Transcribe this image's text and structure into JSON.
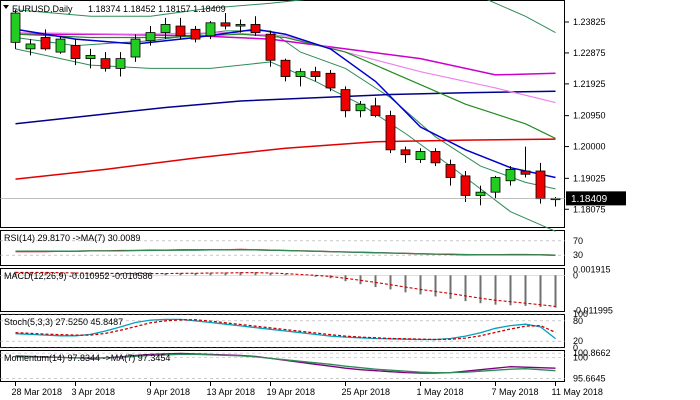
{
  "chart_data": [
    {
      "type": "candlestick",
      "title": "EURUSD,Daily",
      "ohlc_header": "1.18374 1.18452 1.18157 1.18409",
      "last_price_label": "1.18409",
      "ylim": [
        1.175,
        1.245
      ],
      "y_ticks": [
        "1.23825",
        "1.22875",
        "1.21925",
        "1.20950",
        "1.20000",
        "1.19025",
        "1.18075"
      ],
      "y_tick_values": [
        1.23825,
        1.22875,
        1.21925,
        1.2095,
        1.2,
        1.19025,
        1.18075
      ],
      "x_labels": [
        "28 Mar 2018",
        "3 Apr 2018",
        "9 Apr 2018",
        "13 Apr 2018",
        "19 Apr 2018",
        "25 Apr 2018",
        "1 May 2018",
        "7 May 2018",
        "11 May 2018"
      ],
      "x_label_index": [
        0,
        4,
        9,
        13,
        17,
        22,
        27,
        32,
        36
      ],
      "candles": [
        {
          "o": 1.232,
          "h": 1.242,
          "l": 1.23,
          "c": 1.241
        },
        {
          "o": 1.23,
          "h": 1.233,
          "l": 1.228,
          "c": 1.2315
        },
        {
          "o": 1.2335,
          "h": 1.236,
          "l": 1.2295,
          "c": 1.23
        },
        {
          "o": 1.229,
          "h": 1.234,
          "l": 1.2285,
          "c": 1.233
        },
        {
          "o": 1.231,
          "h": 1.233,
          "l": 1.225,
          "c": 1.227
        },
        {
          "o": 1.227,
          "h": 1.23,
          "l": 1.224,
          "c": 1.228
        },
        {
          "o": 1.227,
          "h": 1.229,
          "l": 1.223,
          "c": 1.224
        },
        {
          "o": 1.224,
          "h": 1.229,
          "l": 1.2215,
          "c": 1.227
        },
        {
          "o": 1.2275,
          "h": 1.2345,
          "l": 1.226,
          "c": 1.233
        },
        {
          "o": 1.2325,
          "h": 1.237,
          "l": 1.231,
          "c": 1.235
        },
        {
          "o": 1.235,
          "h": 1.2395,
          "l": 1.233,
          "c": 1.2375
        },
        {
          "o": 1.237,
          "h": 1.2395,
          "l": 1.233,
          "c": 1.234
        },
        {
          "o": 1.236,
          "h": 1.237,
          "l": 1.232,
          "c": 1.233
        },
        {
          "o": 1.234,
          "h": 1.2385,
          "l": 1.233,
          "c": 1.238
        },
        {
          "o": 1.238,
          "h": 1.241,
          "l": 1.236,
          "c": 1.237
        },
        {
          "o": 1.237,
          "h": 1.239,
          "l": 1.235,
          "c": 1.2375
        },
        {
          "o": 1.2375,
          "h": 1.24,
          "l": 1.234,
          "c": 1.235
        },
        {
          "o": 1.2345,
          "h": 1.2355,
          "l": 1.2245,
          "c": 1.2265
        },
        {
          "o": 1.2265,
          "h": 1.227,
          "l": 1.22,
          "c": 1.2215
        },
        {
          "o": 1.2215,
          "h": 1.224,
          "l": 1.2185,
          "c": 1.223
        },
        {
          "o": 1.223,
          "h": 1.2245,
          "l": 1.22,
          "c": 1.2215
        },
        {
          "o": 1.2225,
          "h": 1.2235,
          "l": 1.217,
          "c": 1.218
        },
        {
          "o": 1.2175,
          "h": 1.2185,
          "l": 1.209,
          "c": 1.211
        },
        {
          "o": 1.211,
          "h": 1.214,
          "l": 1.209,
          "c": 1.213
        },
        {
          "o": 1.2125,
          "h": 1.215,
          "l": 1.209,
          "c": 1.2095
        },
        {
          "o": 1.2095,
          "h": 1.211,
          "l": 1.198,
          "c": 1.199
        },
        {
          "o": 1.199,
          "h": 1.2,
          "l": 1.195,
          "c": 1.1975
        },
        {
          "o": 1.196,
          "h": 1.1995,
          "l": 1.195,
          "c": 1.1985
        },
        {
          "o": 1.1985,
          "h": 1.1995,
          "l": 1.194,
          "c": 1.195
        },
        {
          "o": 1.1945,
          "h": 1.196,
          "l": 1.188,
          "c": 1.1905
        },
        {
          "o": 1.191,
          "h": 1.1925,
          "l": 1.183,
          "c": 1.185
        },
        {
          "o": 1.185,
          "h": 1.188,
          "l": 1.182,
          "c": 1.186
        },
        {
          "o": 1.186,
          "h": 1.191,
          "l": 1.184,
          "c": 1.1905
        },
        {
          "o": 1.1895,
          "h": 1.194,
          "l": 1.188,
          "c": 1.193
        },
        {
          "o": 1.1925,
          "h": 1.2,
          "l": 1.1905,
          "c": 1.1915
        },
        {
          "o": 1.1925,
          "h": 1.195,
          "l": 1.1825,
          "c": 1.184
        },
        {
          "o": 1.1837,
          "h": 1.1845,
          "l": 1.1816,
          "c": 1.1841
        }
      ],
      "overlays": [
        {
          "color": "#00008b",
          "width": 1.5,
          "points": [
            [
              0,
              1.207
            ],
            [
              5,
              1.2095
            ],
            [
              10,
              1.212
            ],
            [
              15,
              1.214
            ],
            [
              20,
              1.215
            ],
            [
              25,
              1.216
            ],
            [
              30,
              1.2165
            ],
            [
              36,
              1.217
            ]
          ]
        },
        {
          "color": "#e00000",
          "width": 1.5,
          "points": [
            [
              0,
              1.19
            ],
            [
              6,
              1.193
            ],
            [
              12,
              1.1965
            ],
            [
              18,
              1.1995
            ],
            [
              24,
              1.2015
            ],
            [
              30,
              1.202
            ],
            [
              36,
              1.2023
            ]
          ]
        },
        {
          "color": "#cc00cc",
          "width": 1.5,
          "points": [
            [
              0,
              1.2345
            ],
            [
              6,
              1.2345
            ],
            [
              12,
              1.234
            ],
            [
              17,
              1.233
            ],
            [
              22,
              1.23
            ],
            [
              27,
              1.227
            ],
            [
              32,
              1.222
            ],
            [
              36,
              1.2225
            ]
          ]
        },
        {
          "color": "#ee82ee",
          "width": 1.2,
          "points": [
            [
              0,
              1.235
            ],
            [
              8,
              1.2345
            ],
            [
              14,
              1.235
            ],
            [
              18,
              1.234
            ],
            [
              22,
              1.229
            ],
            [
              27,
              1.223
            ],
            [
              32,
              1.218
            ],
            [
              36,
              1.2135
            ]
          ]
        },
        {
          "color": "#228b22",
          "width": 1.2,
          "points": [
            [
              0,
              1.2345
            ],
            [
              5,
              1.2335
            ],
            [
              10,
              1.2335
            ],
            [
              15,
              1.2345
            ],
            [
              18,
              1.2335
            ],
            [
              22,
              1.229
            ],
            [
              26,
              1.221
            ],
            [
              30,
              1.213
            ],
            [
              34,
              1.207
            ],
            [
              36,
              1.2025
            ]
          ]
        },
        {
          "color": "#0000cd",
          "width": 1.5,
          "points": [
            [
              0,
              1.236
            ],
            [
              4,
              1.233
            ],
            [
              8,
              1.2315
            ],
            [
              12,
              1.2335
            ],
            [
              16,
              1.236
            ],
            [
              18,
              1.2345
            ],
            [
              21,
              1.23
            ],
            [
              24,
              1.22
            ],
            [
              27,
              1.206
            ],
            [
              30,
              1.199
            ],
            [
              33,
              1.1935
            ],
            [
              36,
              1.1905
            ]
          ]
        },
        {
          "color": "#2e8b57",
          "width": 1.0,
          "points": [
            [
              0,
              1.2335
            ],
            [
              4,
              1.231
            ],
            [
              9,
              1.2325
            ],
            [
              14,
              1.2355
            ],
            [
              17,
              1.2355
            ],
            [
              19,
              1.229
            ],
            [
              22,
              1.224
            ],
            [
              25,
              1.215
            ],
            [
              28,
              1.203
            ],
            [
              31,
              1.194
            ],
            [
              34,
              1.189
            ],
            [
              36,
              1.187
            ]
          ]
        },
        {
          "color": "#2e8b57",
          "width": 1.0,
          "points": [
            [
              0,
              1.242
            ],
            [
              5,
              1.24
            ],
            [
              9,
              1.24
            ],
            [
              13,
              1.2425
            ],
            [
              17,
              1.244
            ],
            [
              21,
              1.246
            ],
            [
              26,
              1.248
            ],
            [
              31,
              1.246
            ],
            [
              34,
              1.24
            ],
            [
              36,
              1.235
            ]
          ]
        },
        {
          "color": "#2e8b57",
          "width": 1.0,
          "points": [
            [
              0,
              1.23
            ],
            [
              5,
              1.225
            ],
            [
              9,
              1.224
            ],
            [
              13,
              1.224
            ],
            [
              17,
              1.226
            ],
            [
              20,
              1.22
            ],
            [
              23,
              1.213
            ],
            [
              26,
              1.204
            ],
            [
              29,
              1.194
            ],
            [
              31,
              1.187
            ],
            [
              33,
              1.18
            ],
            [
              36,
              1.174
            ]
          ]
        }
      ]
    },
    {
      "type": "line",
      "title": "RSI(14) 29.8170 ->MA(7) 30.0089",
      "y_ticks": [
        "70",
        "30"
      ],
      "y_tick_values": [
        70,
        30
      ],
      "ylim": [
        0,
        100
      ],
      "series": [
        {
          "color": "#cc0000",
          "values": [
            40,
            40,
            40,
            41,
            41,
            42,
            42,
            43,
            43,
            44,
            44,
            45,
            45,
            45,
            45,
            46,
            45,
            44,
            43,
            42,
            41,
            40,
            39,
            38,
            37,
            36,
            35,
            34,
            33,
            32,
            31,
            31,
            31,
            32,
            32,
            31,
            30
          ]
        },
        {
          "color": "#2e8b57",
          "values": [
            41,
            41,
            41,
            41,
            41,
            42,
            42,
            42,
            43,
            43,
            44,
            44,
            44,
            45,
            45,
            45,
            45,
            44,
            43,
            42,
            41,
            40,
            39,
            38,
            37,
            36,
            35,
            34,
            33,
            33,
            32,
            31,
            31,
            31,
            31,
            31,
            30
          ]
        }
      ]
    },
    {
      "type": "histogram",
      "title": "MACD(12,26,9) -0.010952 -0.010586",
      "y_ticks": [
        "0.001915",
        "0",
        "-0.011995"
      ],
      "y_tick_values": [
        0.001915,
        0,
        -0.011995
      ],
      "ylim": [
        -0.0125,
        0.0025
      ],
      "values": [
        0.0012,
        0.0011,
        0.001,
        0.0008,
        0.0007,
        0.0006,
        0.0005,
        0.0005,
        0.0005,
        0.0006,
        0.0007,
        0.0008,
        0.0008,
        0.0009,
        0.001,
        0.0011,
        0.0011,
        0.0008,
        0.0004,
        0.0,
        -0.0005,
        -0.001,
        -0.002,
        -0.003,
        -0.004,
        -0.0048,
        -0.0058,
        -0.0065,
        -0.0072,
        -0.008,
        -0.0088,
        -0.0095,
        -0.01,
        -0.0102,
        -0.0104,
        -0.0108,
        -0.011
      ],
      "signal": [
        0.001,
        0.001,
        0.001,
        0.0009,
        0.0008,
        0.0007,
        0.0007,
        0.0006,
        0.0006,
        0.0006,
        0.0006,
        0.0007,
        0.0007,
        0.0008,
        0.0008,
        0.0009,
        0.0009,
        0.0008,
        0.0006,
        0.0003,
        0.0,
        -0.0004,
        -0.001,
        -0.0017,
        -0.0024,
        -0.0032,
        -0.004,
        -0.0048,
        -0.0055,
        -0.0062,
        -0.007,
        -0.0078,
        -0.0085,
        -0.009,
        -0.0095,
        -0.01,
        -0.0106
      ]
    },
    {
      "type": "line",
      "title": "Stoch(5,3,3) 27.5250 45.8487",
      "y_ticks": [
        "100",
        "80",
        "20",
        "0"
      ],
      "y_tick_values": [
        100,
        80,
        20,
        0
      ],
      "ylim": [
        0,
        100
      ],
      "series": [
        {
          "color": "#00a0c0",
          "values": [
            42,
            40,
            38,
            36,
            36,
            40,
            50,
            62,
            75,
            82,
            84,
            84,
            80,
            75,
            70,
            65,
            60,
            55,
            50,
            45,
            40,
            35,
            32,
            30,
            28,
            27,
            26,
            25,
            25,
            28,
            35,
            45,
            58,
            66,
            70,
            62,
            27.5
          ]
        },
        {
          "color": "#cc0000",
          "dash": true,
          "values": [
            45,
            43,
            41,
            39,
            38,
            38,
            43,
            52,
            63,
            74,
            80,
            83,
            83,
            79,
            74,
            69,
            64,
            59,
            54,
            49,
            44,
            39,
            35,
            32,
            30,
            28,
            27,
            26,
            25,
            26,
            29,
            36,
            46,
            56,
            64,
            66,
            45.8
          ]
        }
      ]
    },
    {
      "type": "line",
      "title": "Momentum(14) 97.8344 ->MA(7) 97.3454",
      "y_ticks": [
        "100.8662",
        "100",
        "95.6645"
      ],
      "y_tick_values": [
        100.8662,
        100,
        95.6645
      ],
      "ylim": [
        95,
        101.5
      ],
      "series": [
        {
          "color": "#800080",
          "values": [
            100.3,
            100.2,
            100.1,
            100.0,
            99.9,
            99.8,
            99.9,
            100.1,
            100.4,
            100.6,
            100.7,
            100.8,
            100.7,
            100.6,
            100.5,
            100.4,
            100.2,
            99.8,
            99.4,
            99.0,
            98.6,
            98.2,
            97.8,
            97.5,
            97.3,
            97.1,
            96.9,
            96.8,
            96.8,
            96.9,
            97.2,
            97.5,
            97.8,
            98.1,
            98.0,
            97.9,
            97.8
          ]
        },
        {
          "color": "#2e8b57",
          "values": [
            100.1,
            100.1,
            100.0,
            100.0,
            99.9,
            99.9,
            99.9,
            100.0,
            100.2,
            100.4,
            100.5,
            100.6,
            100.6,
            100.5,
            100.4,
            100.3,
            100.1,
            99.8,
            99.5,
            99.2,
            98.9,
            98.6,
            98.2,
            97.9,
            97.6,
            97.4,
            97.2,
            97.0,
            96.9,
            96.9,
            97.0,
            97.2,
            97.4,
            97.6,
            97.7,
            97.5,
            97.3
          ]
        }
      ]
    }
  ]
}
